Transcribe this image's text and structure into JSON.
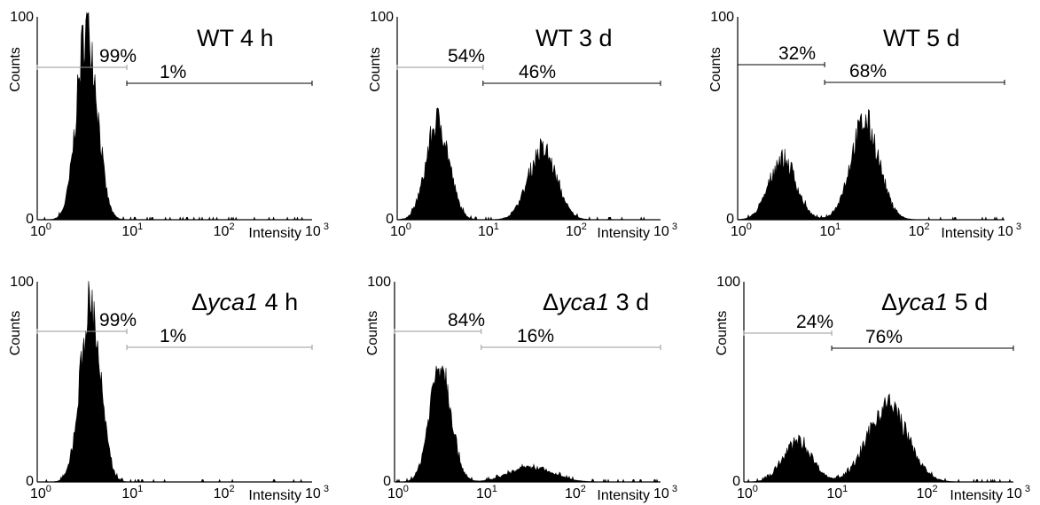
{
  "axis_text": {
    "y_label": "Counts",
    "x_label": "Intensity",
    "y_ticks": [
      "0",
      "100"
    ],
    "x_tick_base": "10",
    "x_tick_exponents": [
      "0",
      "1",
      "2",
      "3"
    ]
  },
  "chart_data": [
    {
      "type": "histogram",
      "title_prefix": "",
      "title_italic": "",
      "title_suffix": "WT 4 h",
      "ylabel": "Counts",
      "xlabel": "Intensity",
      "x_scale": "log",
      "xlim": [
        1,
        1000
      ],
      "ylim": [
        0,
        100
      ],
      "gates": [
        {
          "label": "99%",
          "fraction": 0.99,
          "range": [
            1,
            9.5
          ]
        },
        {
          "label": "1%",
          "fraction": 0.01,
          "range": [
            9.5,
            1000
          ]
        }
      ],
      "peaks": [
        {
          "x": 3.5,
          "height": 95,
          "width": 0.11
        }
      ],
      "x_tick_labels": [
        "10^0",
        "10^1",
        "10^2",
        "10^3"
      ]
    },
    {
      "type": "histogram",
      "title_prefix": "",
      "title_italic": "",
      "title_suffix": "WT 3 d",
      "ylabel": "Counts",
      "xlabel": "Intensity",
      "x_scale": "log",
      "xlim": [
        1,
        1000
      ],
      "ylim": [
        0,
        100
      ],
      "gates": [
        {
          "label": "54%",
          "fraction": 0.54,
          "range": [
            1,
            9.5
          ]
        },
        {
          "label": "46%",
          "fraction": 0.46,
          "range": [
            9.5,
            1000
          ]
        }
      ],
      "peaks": [
        {
          "x": 2.9,
          "height": 48,
          "width": 0.13
        },
        {
          "x": 45,
          "height": 34,
          "width": 0.16
        }
      ],
      "x_tick_labels": [
        "10^0",
        "10^1",
        "10^2",
        "10^3"
      ]
    },
    {
      "type": "histogram",
      "title_prefix": "",
      "title_italic": "",
      "title_suffix": "WT 5 d",
      "ylabel": "Counts",
      "xlabel": "Intensity",
      "x_scale": "log",
      "xlim": [
        1,
        1000
      ],
      "ylim": [
        0,
        100
      ],
      "gates": [
        {
          "label": "32%",
          "fraction": 0.32,
          "range": [
            1,
            9.5
          ]
        },
        {
          "label": "68%",
          "fraction": 0.68,
          "range": [
            9.5,
            1000
          ]
        }
      ],
      "peaks": [
        {
          "x": 3.2,
          "height": 30,
          "width": 0.15
        },
        {
          "x": 27,
          "height": 48,
          "width": 0.16
        }
      ],
      "x_tick_labels": [
        "10^0",
        "10^1",
        "10^2",
        "10^3"
      ]
    },
    {
      "type": "histogram",
      "title_prefix": "Δ",
      "title_italic": "yca1",
      "title_suffix": " 4 h",
      "ylabel": "Counts",
      "xlabel": "Intensity",
      "x_scale": "log",
      "xlim": [
        1,
        1000
      ],
      "ylim": [
        0,
        100
      ],
      "gates": [
        {
          "label": "99%",
          "fraction": 0.99,
          "range": [
            1,
            9.5
          ]
        },
        {
          "label": "1%",
          "fraction": 0.01,
          "range": [
            9.5,
            1000
          ]
        }
      ],
      "peaks": [
        {
          "x": 3.8,
          "height": 88,
          "width": 0.11
        }
      ],
      "x_tick_labels": [
        "10^0",
        "10^1",
        "10^2",
        "10^3"
      ]
    },
    {
      "type": "histogram",
      "title_prefix": "Δ",
      "title_italic": "yca1",
      "title_suffix": " 3 d",
      "ylabel": "Counts",
      "xlabel": "Intensity",
      "x_scale": "log",
      "xlim": [
        1,
        1000
      ],
      "ylim": [
        0,
        100
      ],
      "gates": [
        {
          "label": "84%",
          "fraction": 0.84,
          "range": [
            1,
            9.5
          ]
        },
        {
          "label": "16%",
          "fraction": 0.16,
          "range": [
            9.5,
            1000
          ]
        }
      ],
      "peaks": [
        {
          "x": 3.3,
          "height": 60,
          "width": 0.12
        },
        {
          "x": 35,
          "height": 7,
          "width": 0.25
        }
      ],
      "x_tick_labels": [
        "10^0",
        "10^1",
        "10^2",
        "10^3"
      ]
    },
    {
      "type": "histogram",
      "title_prefix": "Δ",
      "title_italic": "yca1",
      "title_suffix": " 5 d",
      "ylabel": "Counts",
      "xlabel": "Intensity",
      "x_scale": "log",
      "xlim": [
        1,
        1000
      ],
      "ylim": [
        0,
        100
      ],
      "gates": [
        {
          "label": "24%",
          "fraction": 0.24,
          "range": [
            1,
            9.5
          ]
        },
        {
          "label": "76%",
          "fraction": 0.76,
          "range": [
            9.5,
            1000
          ]
        }
      ],
      "peaks": [
        {
          "x": 4,
          "height": 20,
          "width": 0.16
        },
        {
          "x": 40,
          "height": 38,
          "width": 0.22
        }
      ],
      "x_tick_labels": [
        "10^0",
        "10^1",
        "10^2",
        "10^3"
      ]
    }
  ]
}
